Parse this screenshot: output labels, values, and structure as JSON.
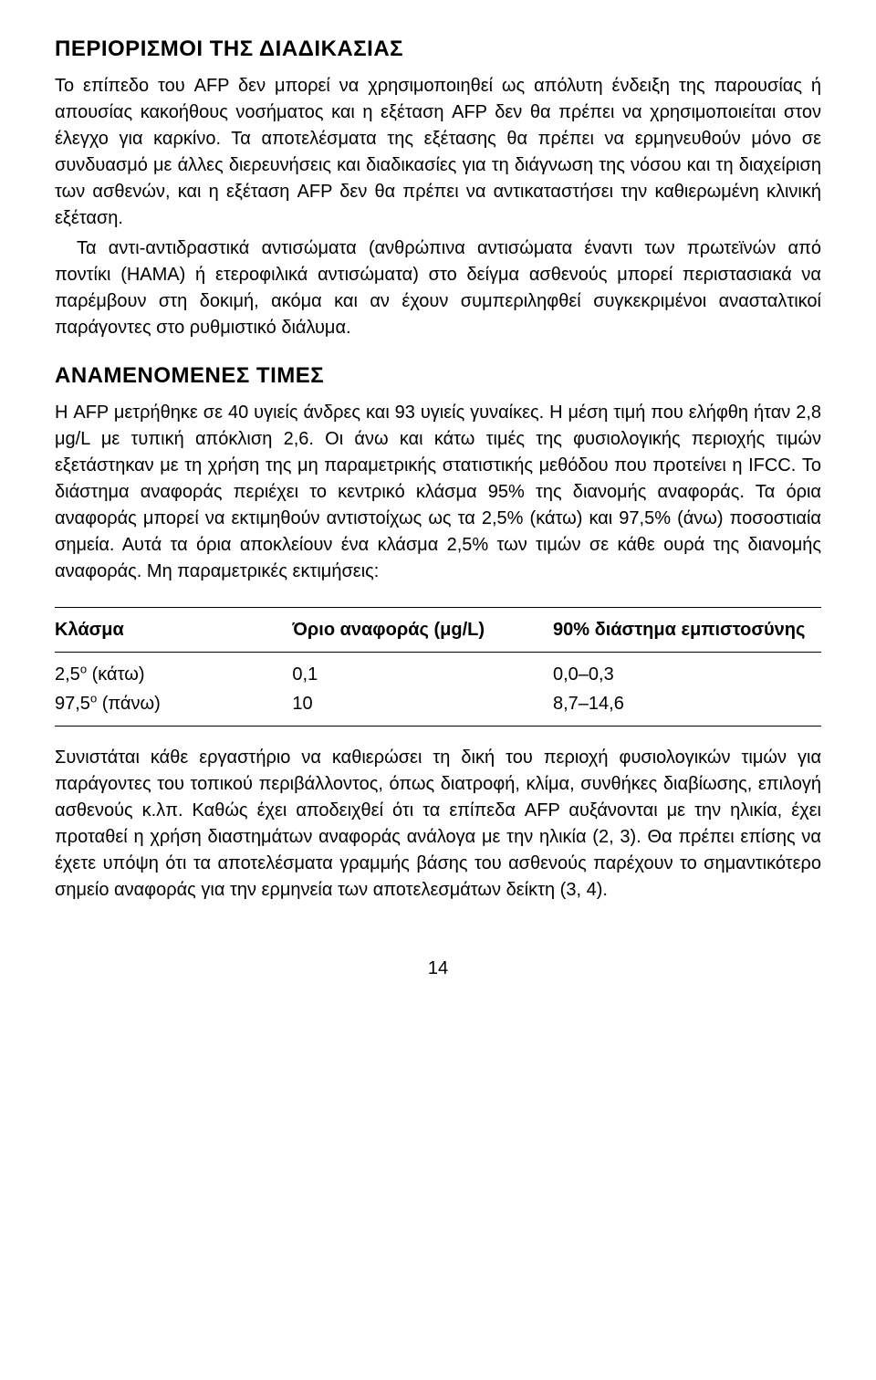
{
  "sections": {
    "limitations": {
      "heading": "ΠΕΡΙΟΡΙΣΜΟΙ ΤΗΣ ΔΙΑΔΙΚΑΣΙΑΣ",
      "para1": "Το επίπεδο του AFP δεν μπορεί να χρησιμοποιηθεί ως απόλυτη ένδειξη της παρουσίας ή απουσίας κακοήθους νοσήματος και η εξέταση AFP δεν θα πρέπει να χρησιμοποιείται στον έλεγχο για καρκίνο. Τα αποτελέσματα της εξέτασης θα πρέπει να ερμηνευθούν μόνο σε συνδυασμό με άλλες διερευνήσεις και διαδικασίες για τη διάγνωση της νόσου και τη διαχείριση των ασθενών, και η εξέταση AFP δεν θα πρέπει να αντικαταστήσει την καθιερωμένη κλινική εξέταση.",
      "para2": "Τα αντι-αντιδραστικά αντισώματα (ανθρώπινα αντισώματα έναντι των πρωτεϊνών από ποντίκι (HAMA) ή ετεροφιλικά αντισώματα) στο δείγμα ασθενούς μπορεί περιστασιακά να παρέμβουν στη δοκιμή, ακόμα και αν έχουν συμπεριληφθεί συγκεκριμένοι ανασταλτικοί παράγοντες στο ρυθμιστικό διάλυμα."
    },
    "expected": {
      "heading": "ΑΝΑΜΕΝΟΜΕΝΕΣ ΤΙΜΕΣ",
      "para1": "Η AFP μετρήθηκε σε 40 υγιείς άνδρες και 93 υγιείς γυναίκες. Η μέση τιμή που ελήφθη ήταν 2,8 μg/L με τυπική απόκλιση 2,6. Οι άνω και κάτω τιμές της φυσιολογικής περιοχής τιμών εξετάστηκαν με τη χρήση της μη παραμετρικής στατιστικής μεθόδου που προτείνει η IFCC. Το διάστημα αναφοράς περιέχει το κεντρικό κλάσμα 95% της διανομής αναφοράς. Τα όρια αναφοράς μπορεί να εκτιμηθούν αντιστοίχως ως τα 2,5% (κάτω) και 97,5% (άνω) ποσοστιαία σημεία. Αυτά τα όρια αποκλείουν ένα κλάσμα 2,5% των τιμών σε κάθε ουρά της διανομής αναφοράς. Μη παραμετρικές εκτιμήσεις:"
    },
    "table": {
      "headers": {
        "col1": "Κλάσμα",
        "col2": "Όριο αναφοράς (μg/L)",
        "col3": "90% διάστημα εμπιστοσύνης"
      },
      "rows": [
        {
          "fraction_pre": "2,5",
          "fraction_sup": "ο",
          "fraction_post": " (κάτω)",
          "limit": "0,1",
          "ci": "0,0–0,3"
        },
        {
          "fraction_pre": "97,5",
          "fraction_sup": "ο",
          "fraction_post": " (πάνω)",
          "limit": "10",
          "ci": "8,7–14,6"
        }
      ]
    },
    "footer_para": "Συνιστάται κάθε εργαστήριο να καθιερώσει τη δική του περιοχή φυσιολογικών τιμών για παράγοντες του τοπικού περιβάλλοντος, όπως διατροφή, κλίμα, συνθήκες διαβίωσης, επιλογή ασθενούς κ.λπ. Καθώς έχει αποδειχθεί ότι τα επίπεδα AFP αυξάνονται με την ηλικία, έχει προταθεί η χρήση διαστημάτων αναφοράς ανάλογα με την ηλικία (2, 3). Θα πρέπει επίσης να έχετε υπόψη ότι τα αποτελέσματα γραμμής βάσης του ασθενούς παρέχουν το σημαντικότερο σημείο αναφοράς για την ερμηνεία των αποτελεσμάτων δείκτη (3, 4)."
  },
  "page_number": "14"
}
